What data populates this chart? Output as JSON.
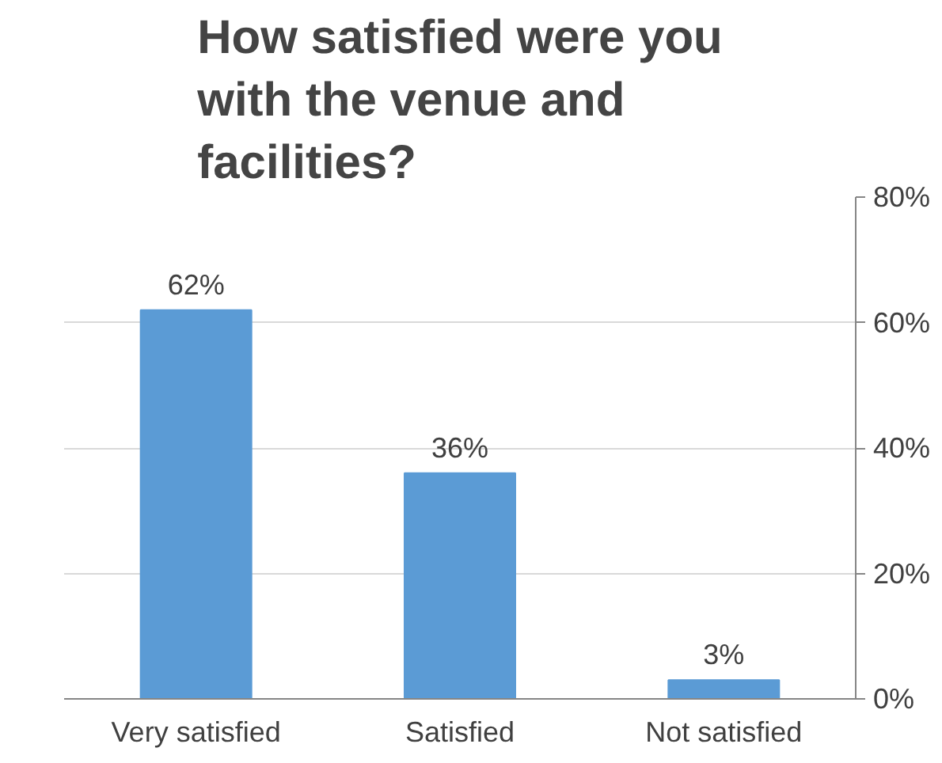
{
  "chart_data": {
    "type": "bar",
    "title": "How satisfied were you with the venue and facilities?",
    "categories": [
      "Very satisfied",
      "Satisfied",
      "Not satisfied"
    ],
    "values": [
      62,
      36,
      3
    ],
    "color": "#5b9bd5",
    "value_labels": [
      "62%",
      "36%",
      "3%"
    ],
    "ylim": [
      0,
      80
    ],
    "yticks": [
      {
        "value": 0,
        "label": "0%"
      },
      {
        "value": 20,
        "label": "20%"
      },
      {
        "value": 40,
        "label": "40%"
      },
      {
        "value": 60,
        "label": "60%"
      },
      {
        "value": 80,
        "label": "80%"
      }
    ],
    "grid": "y"
  }
}
